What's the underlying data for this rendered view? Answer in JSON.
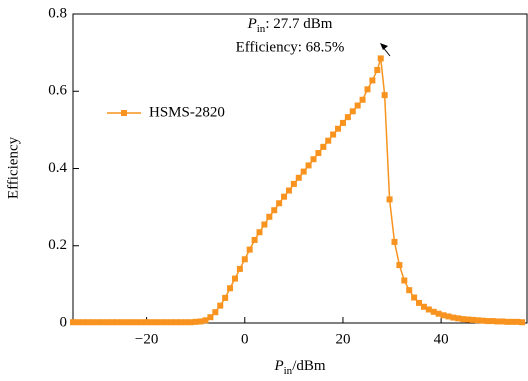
{
  "chart_data": {
    "type": "line",
    "ylabel": "Efficiency",
    "xlabel": {
      "symbol": "P",
      "subscript": "in",
      "unit": "/dBm"
    },
    "annotation": {
      "symbol": "P",
      "subscript": "in",
      "text": ": 27.7 dBm",
      "line2": "Efficiency: 68.5%"
    },
    "x": [
      -35,
      -34,
      -33,
      -32,
      -31,
      -30,
      -29,
      -28,
      -27,
      -26,
      -25,
      -24,
      -23,
      -22,
      -21,
      -20,
      -19,
      -18,
      -17,
      -16,
      -15,
      -14,
      -13,
      -12,
      -11,
      -10,
      -9,
      -8,
      -7,
      -6,
      -5,
      -4,
      -3,
      -2,
      -1,
      0,
      1,
      2,
      3,
      4,
      5,
      6,
      7,
      8,
      9,
      10,
      11,
      12,
      13,
      14,
      15,
      16,
      17,
      18,
      19,
      20,
      21,
      22,
      23,
      24,
      25,
      26,
      27,
      27.7,
      28.5,
      29.5,
      30.5,
      31.5,
      32.5,
      33.5,
      34.5,
      35.5,
      36.5,
      37.5,
      38.5,
      39.5,
      40.5,
      41.5,
      42.5,
      43.5,
      44.5,
      45.5,
      46.5,
      47.5,
      48.5,
      49.5,
      50.5,
      51.5,
      52.5,
      53.5,
      54.5,
      55.5,
      56.5
    ],
    "series": [
      {
        "name": "HSMS-2820",
        "color": "#f7931e",
        "values": [
          0.002,
          0.002,
          0.002,
          0.002,
          0.002,
          0.002,
          0.002,
          0.002,
          0.002,
          0.002,
          0.002,
          0.002,
          0.002,
          0.002,
          0.002,
          0.002,
          0.002,
          0.002,
          0.002,
          0.002,
          0.002,
          0.002,
          0.002,
          0.002,
          0.002,
          0.003,
          0.004,
          0.007,
          0.015,
          0.028,
          0.045,
          0.065,
          0.09,
          0.115,
          0.14,
          0.165,
          0.19,
          0.215,
          0.235,
          0.255,
          0.275,
          0.292,
          0.31,
          0.327,
          0.343,
          0.36,
          0.376,
          0.392,
          0.408,
          0.424,
          0.44,
          0.456,
          0.472,
          0.488,
          0.503,
          0.518,
          0.533,
          0.548,
          0.563,
          0.578,
          0.605,
          0.628,
          0.655,
          0.685,
          0.59,
          0.32,
          0.21,
          0.15,
          0.11,
          0.085,
          0.066,
          0.052,
          0.042,
          0.035,
          0.029,
          0.024,
          0.02,
          0.017,
          0.014,
          0.012,
          0.01,
          0.009,
          0.008,
          0.007,
          0.006,
          0.005,
          0.005,
          0.004,
          0.004,
          0.003,
          0.003,
          0.003,
          0.002
        ]
      }
    ],
    "xlim": [
      -35,
      57.5
    ],
    "ylim": [
      0,
      0.8
    ],
    "xticks": [
      {
        "value": -20,
        "label": "−20"
      },
      0,
      20,
      40
    ],
    "yticks": [
      0,
      0.2,
      0.4,
      0.6,
      0.8
    ],
    "legend": "upper left",
    "grid": false
  }
}
